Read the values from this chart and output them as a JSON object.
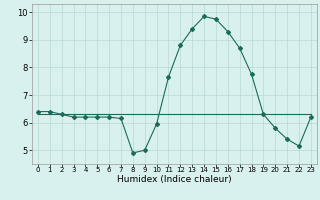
{
  "xlabel": "Humidex (Indice chaleur)",
  "x_values": [
    0,
    1,
    2,
    3,
    4,
    5,
    6,
    7,
    8,
    9,
    10,
    11,
    12,
    13,
    14,
    15,
    16,
    17,
    18,
    19,
    20,
    21,
    22,
    23
  ],
  "y_values": [
    6.4,
    6.4,
    6.3,
    6.2,
    6.2,
    6.2,
    6.2,
    6.15,
    4.9,
    5.0,
    5.95,
    7.65,
    8.8,
    9.4,
    9.85,
    9.75,
    9.3,
    8.7,
    7.75,
    6.3,
    5.8,
    5.4,
    5.15,
    6.2
  ],
  "y_flat": [
    6.3,
    6.3,
    6.3,
    6.3,
    6.3,
    6.3,
    6.3,
    6.3,
    6.3,
    6.3,
    6.3,
    6.3,
    6.3,
    6.3,
    6.3,
    6.3,
    6.3,
    6.3,
    6.3,
    6.3,
    6.3,
    6.3,
    6.3,
    6.3
  ],
  "line_color": "#1a6b5a",
  "bg_color": "#d8f0ee",
  "grid_color": "#b8d8d4",
  "ylim": [
    4.5,
    10.3
  ],
  "xlim": [
    -0.5,
    23.5
  ],
  "yticks": [
    5,
    6,
    7,
    8,
    9,
    10
  ],
  "xticks": [
    0,
    1,
    2,
    3,
    4,
    5,
    6,
    7,
    8,
    9,
    10,
    11,
    12,
    13,
    14,
    15,
    16,
    17,
    18,
    19,
    20,
    21,
    22,
    23
  ]
}
